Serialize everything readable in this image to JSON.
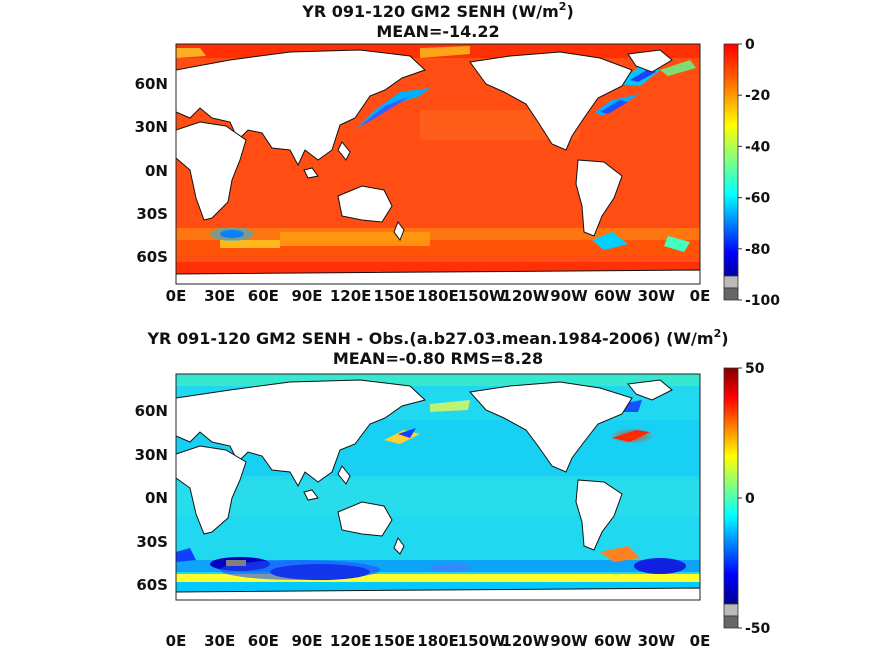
{
  "chart_data": [
    {
      "type": "heatmap",
      "title_prefix": "YR 091-120 GM2  SENH (W/m",
      "title_sup": "2",
      "title_suffix": ")",
      "subtitle": "MEAN=-14.22",
      "mean": -14.22,
      "xticks": [
        "0E",
        "30E",
        "60E",
        "90E",
        "120E",
        "150E",
        "180E",
        "150W",
        "120W",
        "90W",
        "60W",
        "30W",
        "0E"
      ],
      "yticks": [
        "60N",
        "30N",
        "0N",
        "30S",
        "60S"
      ],
      "colorbar": {
        "min": -100,
        "max": 0,
        "ticks": [
          "0",
          "-20",
          "-40",
          "-60",
          "-80",
          "-100"
        ]
      },
      "scene": "abs"
    },
    {
      "type": "heatmap",
      "title_prefix": "YR 091-120 GM2 SENH - Obs.(a.b27.03.mean.1984-2006) (W/m",
      "title_sup": "2",
      "title_suffix": ")",
      "subtitle": "MEAN=-0.80 RMS=8.28",
      "mean": -0.8,
      "rms": 8.28,
      "xticks": [
        "0E",
        "30E",
        "60E",
        "90E",
        "120E",
        "150E",
        "180E",
        "150W",
        "120W",
        "90W",
        "60W",
        "30W",
        "0E"
      ],
      "yticks": [
        "60N",
        "30N",
        "0N",
        "30S",
        "60S"
      ],
      "colorbar": {
        "min": -50,
        "max": 50,
        "ticks": [
          "50",
          "0",
          "-50"
        ]
      },
      "scene": "diff"
    }
  ]
}
